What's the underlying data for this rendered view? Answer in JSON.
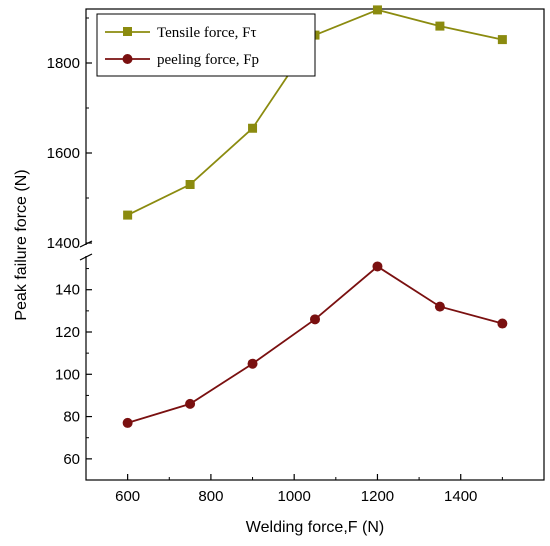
{
  "chart_data": {
    "type": "line",
    "title": "",
    "xlabel": "Welding force,F (N)",
    "ylabel": "Peak failure force (N)",
    "x": [
      600,
      750,
      900,
      1050,
      1200,
      1350,
      1500
    ],
    "xticks": [
      "600",
      "800",
      "1000",
      "1200",
      "1400"
    ],
    "xlim": [
      500,
      1600
    ],
    "broken_axis": {
      "upper": {
        "ylim": [
          1400,
          1920
        ],
        "ticks": [
          "1400",
          "1600",
          "1800"
        ]
      },
      "lower": {
        "ylim": [
          50,
          155
        ],
        "ticks": [
          "60",
          "80",
          "100",
          "120",
          "140"
        ]
      }
    },
    "series": [
      {
        "name": "Tensile force, Fτ",
        "values": [
          1462,
          1530,
          1655,
          1862,
          1918,
          1882,
          1852
        ],
        "color": "#8b8b0f",
        "marker": "square",
        "axis_segment": "upper"
      },
      {
        "name": "peeling force, Fp",
        "values": [
          77,
          86,
          105,
          126,
          151,
          132,
          124
        ],
        "color": "#7a1010",
        "marker": "circle",
        "axis_segment": "lower"
      }
    ],
    "legend_position": "top-left",
    "grid": false
  }
}
